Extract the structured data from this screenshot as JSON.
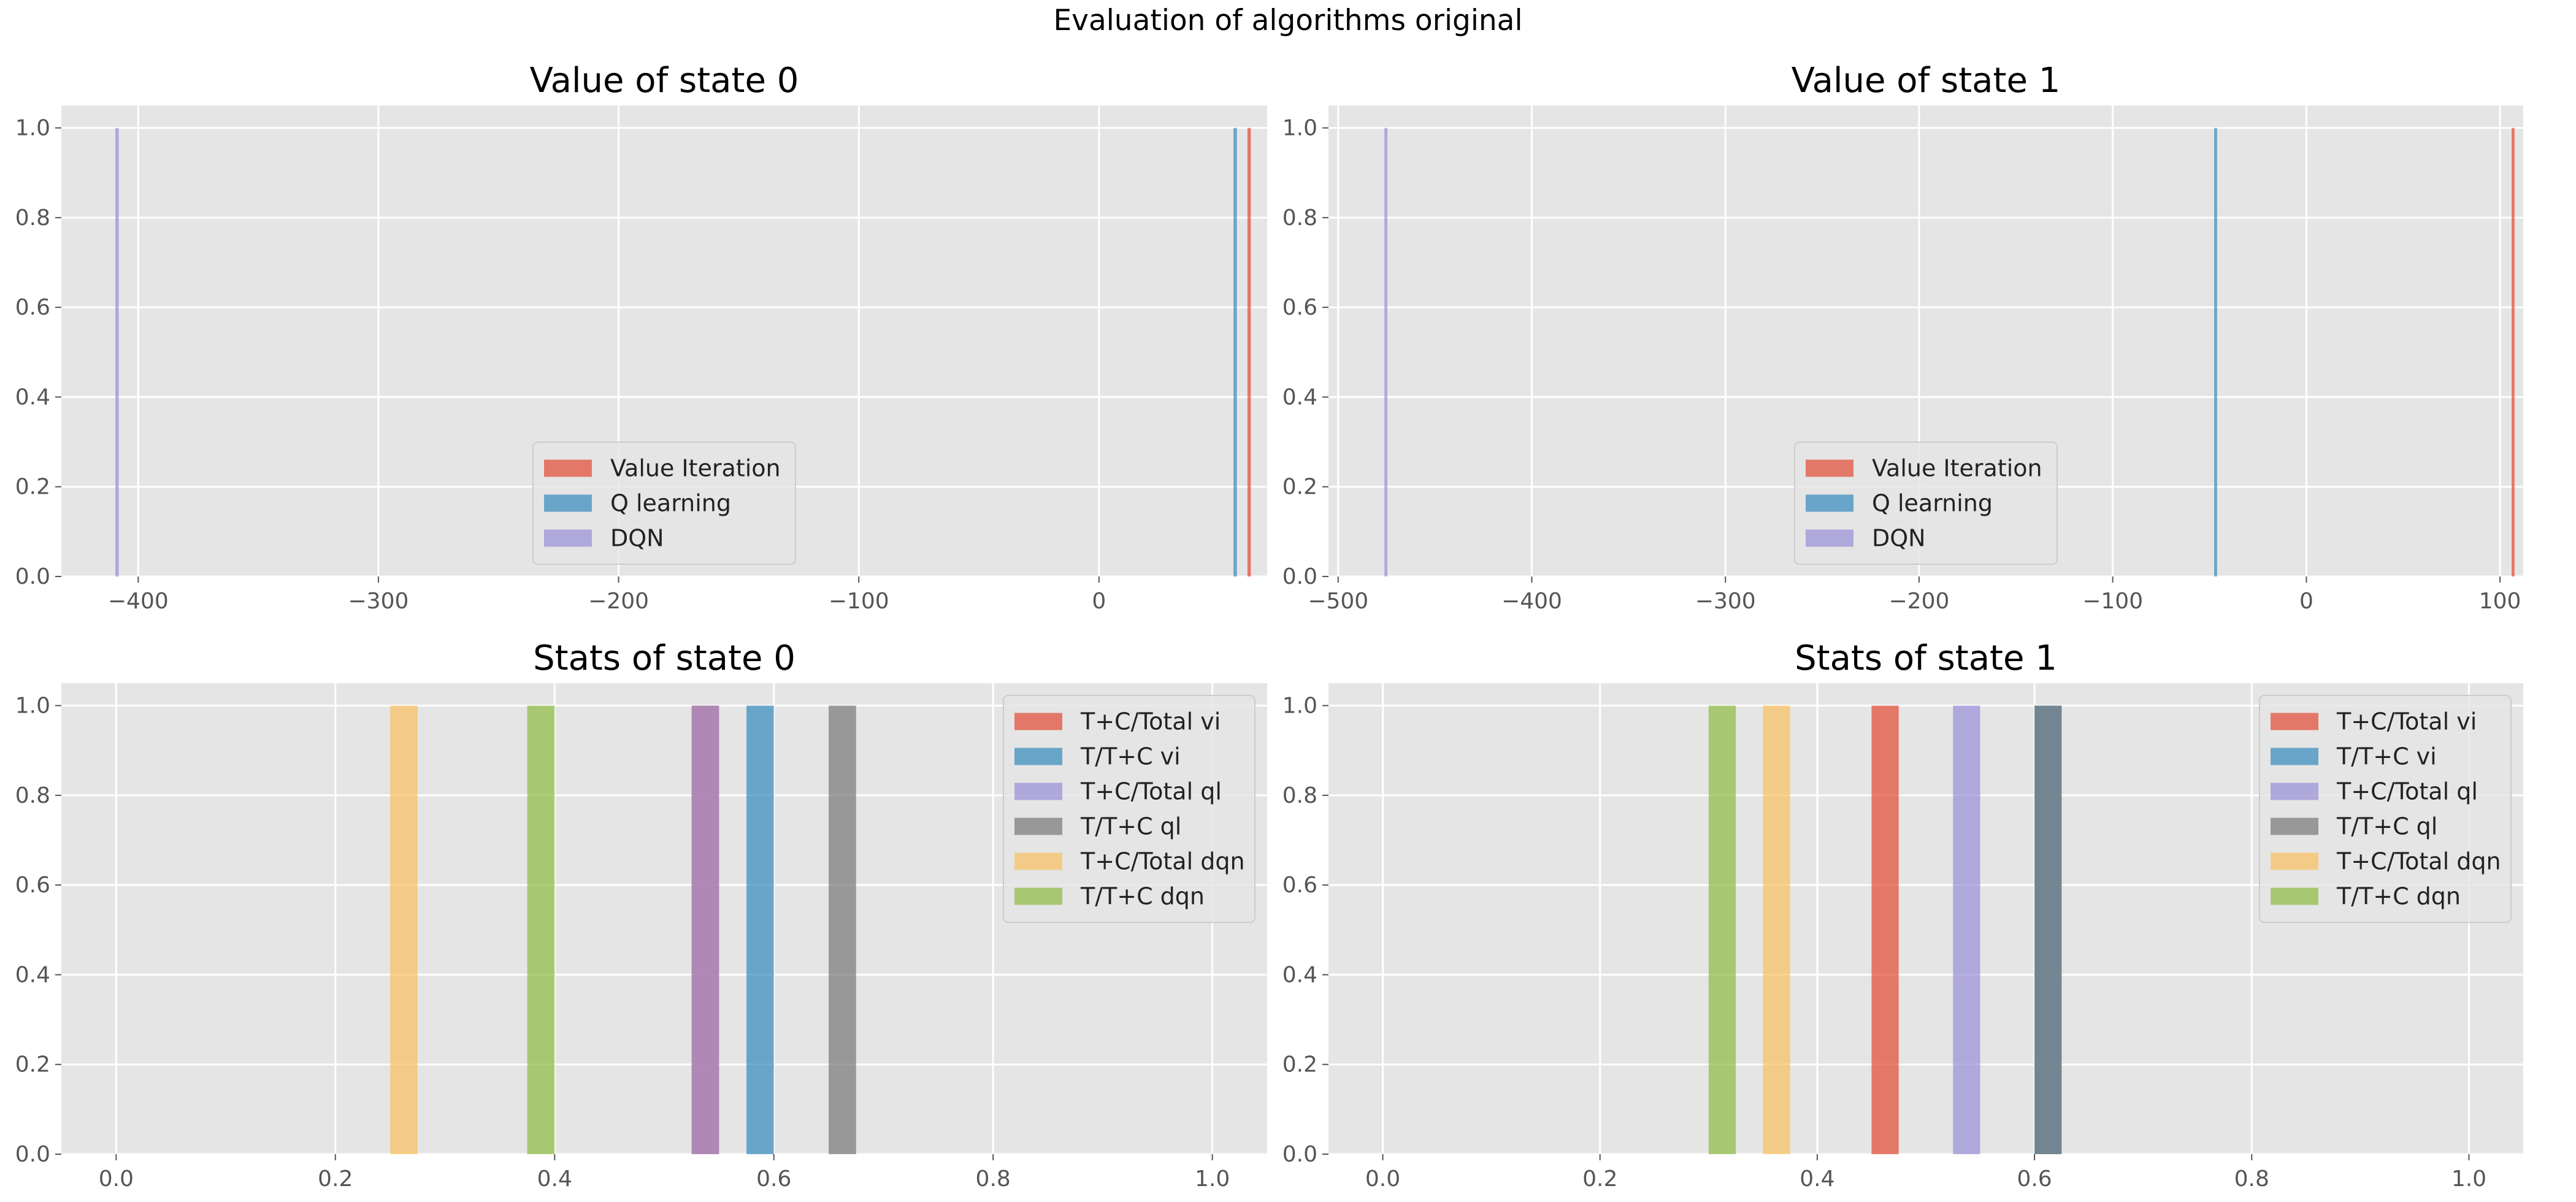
{
  "figure_title": "Evaluation of algorithms original",
  "colors": {
    "red": "#E24A33",
    "blue": "#348ABD",
    "purple": "#988ED5",
    "gray": "#777777",
    "yellow": "#FBC15E",
    "green": "#8EBA42",
    "panel_bg": "#E5E5E5",
    "grid": "#FFFFFF"
  },
  "chart_data": [
    {
      "type": "histogram",
      "title": "Value of state 0",
      "xlim": [
        -432,
        70
      ],
      "ylim": [
        0,
        1.05
      ],
      "xticks": [
        -400,
        -300,
        -200,
        -100,
        0
      ],
      "xtick_labels": [
        "−400",
        "−300",
        "−200",
        "−100",
        "0"
      ],
      "yticks": [
        0,
        0.2,
        0.4,
        0.6,
        0.8,
        1.0
      ],
      "ytick_labels": [
        "0.0",
        "0.2",
        "0.4",
        "0.6",
        "0.8",
        "1.0"
      ],
      "grid": true,
      "legend_loc": "lower center",
      "bar_alpha": 0.7,
      "series": [
        {
          "name": "Value Iteration",
          "color": "red",
          "bins": [
            [
              61.8,
              63.2,
              1
            ]
          ]
        },
        {
          "name": "Q learning",
          "color": "blue",
          "bins": [
            [
              56.0,
              57.4,
              1
            ]
          ]
        },
        {
          "name": "DQN",
          "color": "purple",
          "bins": [
            [
              -409.5,
              -408.1,
              1
            ]
          ]
        }
      ]
    },
    {
      "type": "histogram",
      "title": "Value of state 1",
      "xlim": [
        -505,
        112
      ],
      "ylim": [
        0,
        1.05
      ],
      "xticks": [
        -500,
        -400,
        -300,
        -200,
        -100,
        0,
        100
      ],
      "xtick_labels": [
        "−500",
        "−400",
        "−300",
        "−200",
        "−100",
        "0",
        "100"
      ],
      "yticks": [
        0,
        0.2,
        0.4,
        0.6,
        0.8,
        1.0
      ],
      "ytick_labels": [
        "0.0",
        "0.2",
        "0.4",
        "0.6",
        "0.8",
        "1.0"
      ],
      "grid": true,
      "legend_loc": "lower center",
      "bar_alpha": 0.7,
      "series": [
        {
          "name": "Value Iteration",
          "color": "red",
          "bins": [
            [
              106.0,
              107.5,
              1
            ]
          ]
        },
        {
          "name": "Q learning",
          "color": "blue",
          "bins": [
            [
              -47.6,
              -46.1,
              1
            ]
          ]
        },
        {
          "name": "DQN",
          "color": "purple",
          "bins": [
            [
              -476.1,
              -474.6,
              1
            ]
          ]
        }
      ]
    },
    {
      "type": "histogram",
      "title": "Stats of state 0",
      "xlim": [
        -0.05,
        1.05
      ],
      "ylim": [
        0,
        1.05
      ],
      "xticks": [
        0,
        0.2,
        0.4,
        0.6,
        0.8,
        1.0
      ],
      "xtick_labels": [
        "0.0",
        "0.2",
        "0.4",
        "0.6",
        "0.8",
        "1.0"
      ],
      "yticks": [
        0,
        0.2,
        0.4,
        0.6,
        0.8,
        1.0
      ],
      "ytick_labels": [
        "0.0",
        "0.2",
        "0.4",
        "0.6",
        "0.8",
        "1.0"
      ],
      "grid": true,
      "legend_loc": "upper right",
      "bar_alpha": 0.7,
      "series": [
        {
          "name": "T+C/Total vi",
          "color": "red",
          "bins": [
            [
              0.525,
              0.55,
              1
            ]
          ]
        },
        {
          "name": "T/T+C vi",
          "color": "blue",
          "bins": [
            [
              0.575,
              0.6,
              1
            ]
          ]
        },
        {
          "name": "T+C/Total ql",
          "color": "purple",
          "bins": [
            [
              0.525,
              0.55,
              1
            ]
          ]
        },
        {
          "name": "T/T+C ql",
          "color": "gray",
          "bins": [
            [
              0.65,
              0.675,
              1
            ]
          ]
        },
        {
          "name": "T+C/Total dqn",
          "color": "yellow",
          "bins": [
            [
              0.25,
              0.275,
              1
            ]
          ]
        },
        {
          "name": "T/T+C dqn",
          "color": "green",
          "bins": [
            [
              0.375,
              0.4,
              1
            ]
          ]
        }
      ]
    },
    {
      "type": "histogram",
      "title": "Stats of state 1",
      "xlim": [
        -0.05,
        1.05
      ],
      "ylim": [
        0,
        1.05
      ],
      "xticks": [
        0,
        0.2,
        0.4,
        0.6,
        0.8,
        1.0
      ],
      "xtick_labels": [
        "0.0",
        "0.2",
        "0.4",
        "0.6",
        "0.8",
        "1.0"
      ],
      "yticks": [
        0,
        0.2,
        0.4,
        0.6,
        0.8,
        1.0
      ],
      "ytick_labels": [
        "0.0",
        "0.2",
        "0.4",
        "0.6",
        "0.8",
        "1.0"
      ],
      "grid": true,
      "legend_loc": "upper right",
      "bar_alpha": 0.7,
      "series": [
        {
          "name": "T+C/Total vi",
          "color": "red",
          "bins": [
            [
              0.45,
              0.475,
              1
            ]
          ]
        },
        {
          "name": "T/T+C vi",
          "color": "blue",
          "bins": [
            [
              0.6,
              0.625,
              1
            ]
          ]
        },
        {
          "name": "T+C/Total ql",
          "color": "purple",
          "bins": [
            [
              0.525,
              0.55,
              1
            ]
          ]
        },
        {
          "name": "T/T+C ql",
          "color": "gray",
          "bins": [
            [
              0.6,
              0.625,
              1
            ]
          ]
        },
        {
          "name": "T+C/Total dqn",
          "color": "yellow",
          "bins": [
            [
              0.35,
              0.375,
              1
            ]
          ]
        },
        {
          "name": "T/T+C dqn",
          "color": "green",
          "bins": [
            [
              0.3,
              0.325,
              1
            ]
          ]
        }
      ]
    }
  ]
}
